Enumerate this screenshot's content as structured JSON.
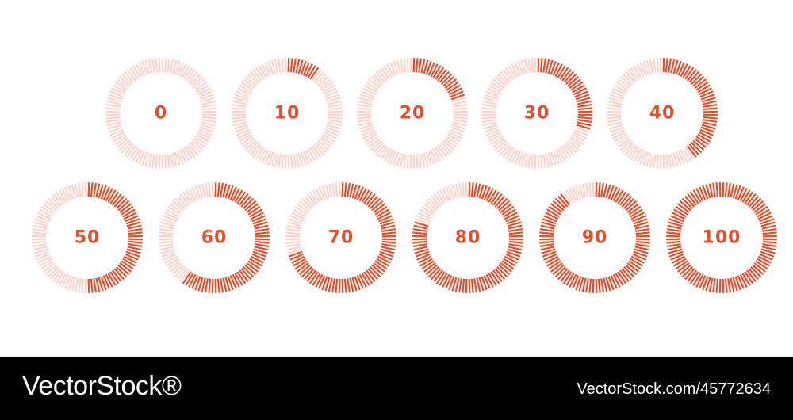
{
  "colors": {
    "filled": "#e2502f",
    "empty": "#fbd3cb",
    "label": "#e2502f",
    "footer_bg": "#000000",
    "footer_text": "#ffffff"
  },
  "segments_per_ring": 100,
  "gauges": [
    {
      "label": "0",
      "value": 0
    },
    {
      "label": "10",
      "value": 10
    },
    {
      "label": "20",
      "value": 20
    },
    {
      "label": "30",
      "value": 30
    },
    {
      "label": "40",
      "value": 40
    },
    {
      "label": "50",
      "value": 50
    },
    {
      "label": "60",
      "value": 60
    },
    {
      "label": "70",
      "value": 70
    },
    {
      "label": "80",
      "value": 80
    },
    {
      "label": "90",
      "value": 90
    },
    {
      "label": "100",
      "value": 100
    }
  ],
  "footer": {
    "brand": "VectorStock®",
    "image_id": "VectorStock.com/45772634"
  }
}
